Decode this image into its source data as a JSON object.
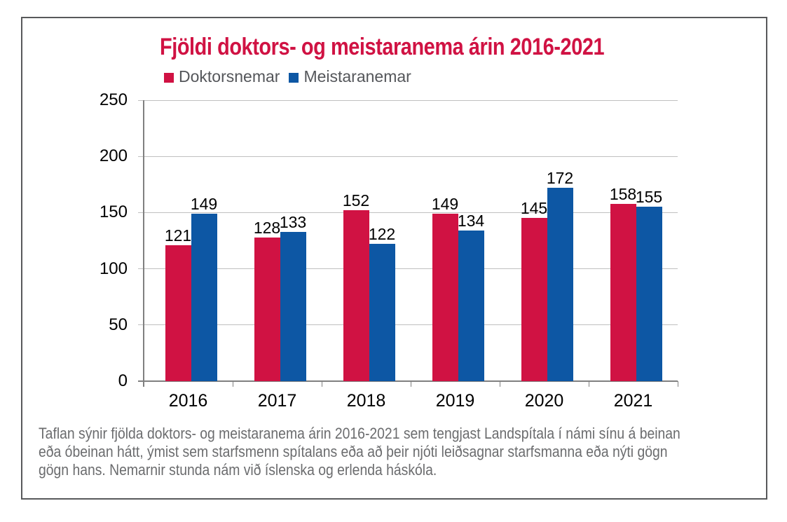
{
  "chart_data": {
    "type": "bar",
    "title": "Fjöldi doktors- og meistaranema árin 2016-2021",
    "categories": [
      "2016",
      "2017",
      "2018",
      "2019",
      "2020",
      "2021"
    ],
    "series": [
      {
        "name": "Doktorsnemar",
        "color": "#D01243",
        "values": [
          121,
          128,
          152,
          149,
          145,
          158
        ]
      },
      {
        "name": "Meistaranemar",
        "color": "#0D57A4",
        "values": [
          149,
          133,
          122,
          134,
          172,
          155
        ]
      }
    ],
    "ylim": [
      0,
      250
    ],
    "ytick_step": 50,
    "yticks": [
      0,
      50,
      100,
      150,
      200,
      250
    ],
    "grid": "horizontal",
    "legend_position": "top-left",
    "value_labels": true,
    "xlabel": "",
    "ylabel": ""
  },
  "colors": {
    "title": "#D01243",
    "legend_text": "#54565A",
    "caption_text": "#6B6C6E",
    "gridline": "#C0C0C0",
    "axis": "#808080",
    "tick_labels": "#000000",
    "frame_border": "#58595B"
  },
  "caption": {
    "lines": [
      "Taflan sýnir fjölda doktors- og meistaranema árin 2016-2021 sem tengjast Landspítala í námi sínu á beinan",
      "eða óbeinan hátt, ýmist sem starfsmenn spítalans eða að þeir njóti leiðsagnar starfsmanna eða nýti gögn",
      "gögn hans. Nemarnir stunda nám við íslenska og erlenda háskóla."
    ]
  }
}
